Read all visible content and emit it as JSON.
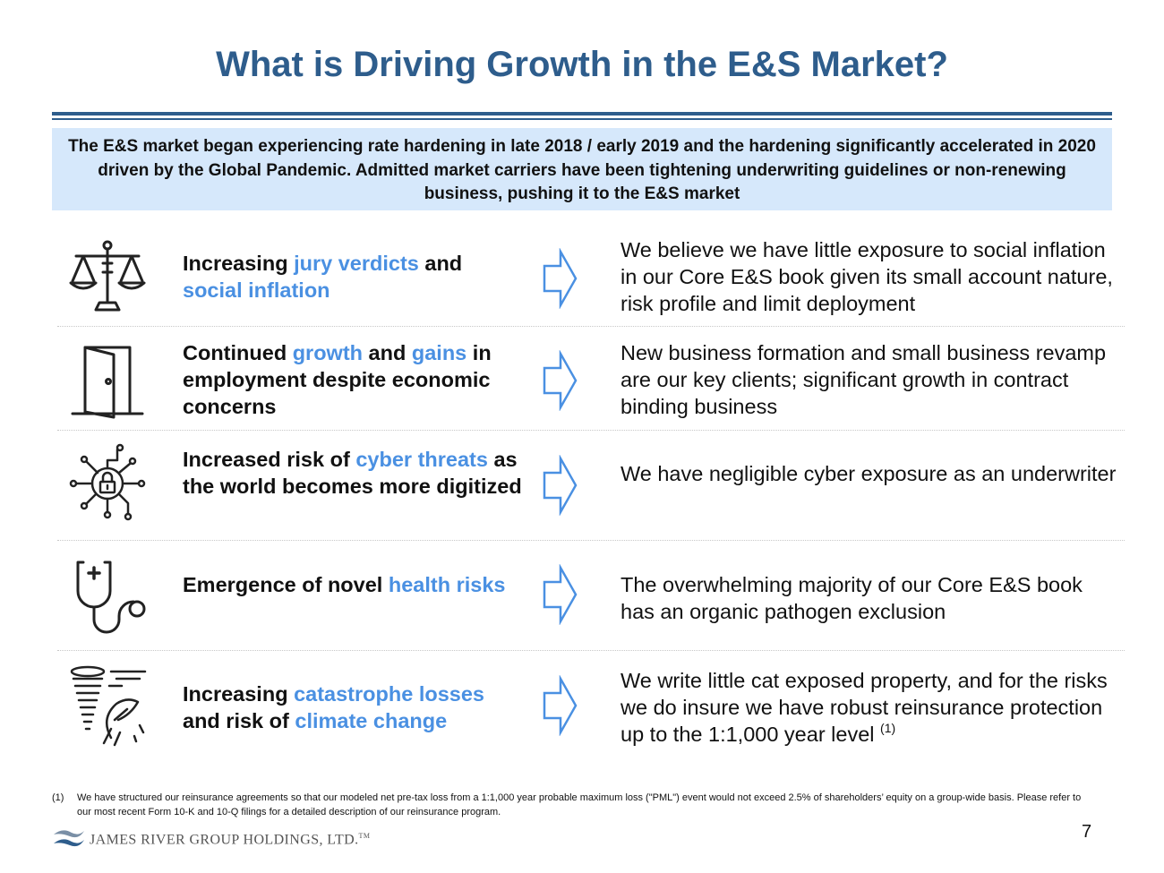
{
  "title": "What is Driving Growth in the E&S Market?",
  "summary": "The E&S market began experiencing rate hardening in late 2018 / early 2019 and the hardening significantly accelerated in 2020 driven by the Global Pandemic. Admitted market carriers have been tightening underwriting guidelines or non-renewing business, pushing it to the E&S market",
  "rows": [
    {
      "icon": "scales-of-justice-icon",
      "driver": [
        "Increasing ",
        "jury verdicts",
        " and ",
        "social inflation"
      ],
      "response": "We believe we have little exposure to social inflation in our Core E&S book given its small account nature, risk profile and limit deployment"
    },
    {
      "icon": "open-door-icon",
      "driver": [
        "Continued ",
        "growth",
        " and ",
        "gains",
        " in employment despite economic concerns"
      ],
      "response": "New business formation and small business revamp are our key clients; significant growth in contract binding business"
    },
    {
      "icon": "cyber-lock-icon",
      "driver": [
        "Increased risk of ",
        "cyber threats",
        " as the world becomes more digitized"
      ],
      "response": "We have negligible cyber exposure as an underwriter"
    },
    {
      "icon": "stethoscope-icon",
      "driver": [
        "Emergence of novel ",
        "health risks"
      ],
      "response": "The overwhelming majority of our Core E&S book has an organic pathogen exclusion"
    },
    {
      "icon": "storm-icon",
      "driver": [
        "Increasing ",
        "catastrophe losses",
        " and risk of ",
        "climate change"
      ],
      "response": "We write little cat exposed property, and for the risks we do insure we have robust reinsurance protection up to the 1:1,000 year level",
      "response_sup": "(1)"
    }
  ],
  "footnote": {
    "mark": "(1)",
    "text": "We have structured our reinsurance agreements so that our modeled net pre-tax loss from a 1:1,000 year probable maximum loss (\"PML\") event would not exceed 2.5% of shareholders’ equity on a group-wide basis. Please refer to our most recent Form 10-K and 10-Q filings for a detailed description of our reinsurance program."
  },
  "logo": {
    "text": "JAMES RIVER GROUP HOLDINGS, LTD.",
    "tm": "TM"
  },
  "page_number": "7",
  "colors": {
    "title": "#2E5D8C",
    "highlight": "#4A90E2",
    "summary_bg": "#D6E8FB",
    "arrow": "#4A90E2"
  }
}
